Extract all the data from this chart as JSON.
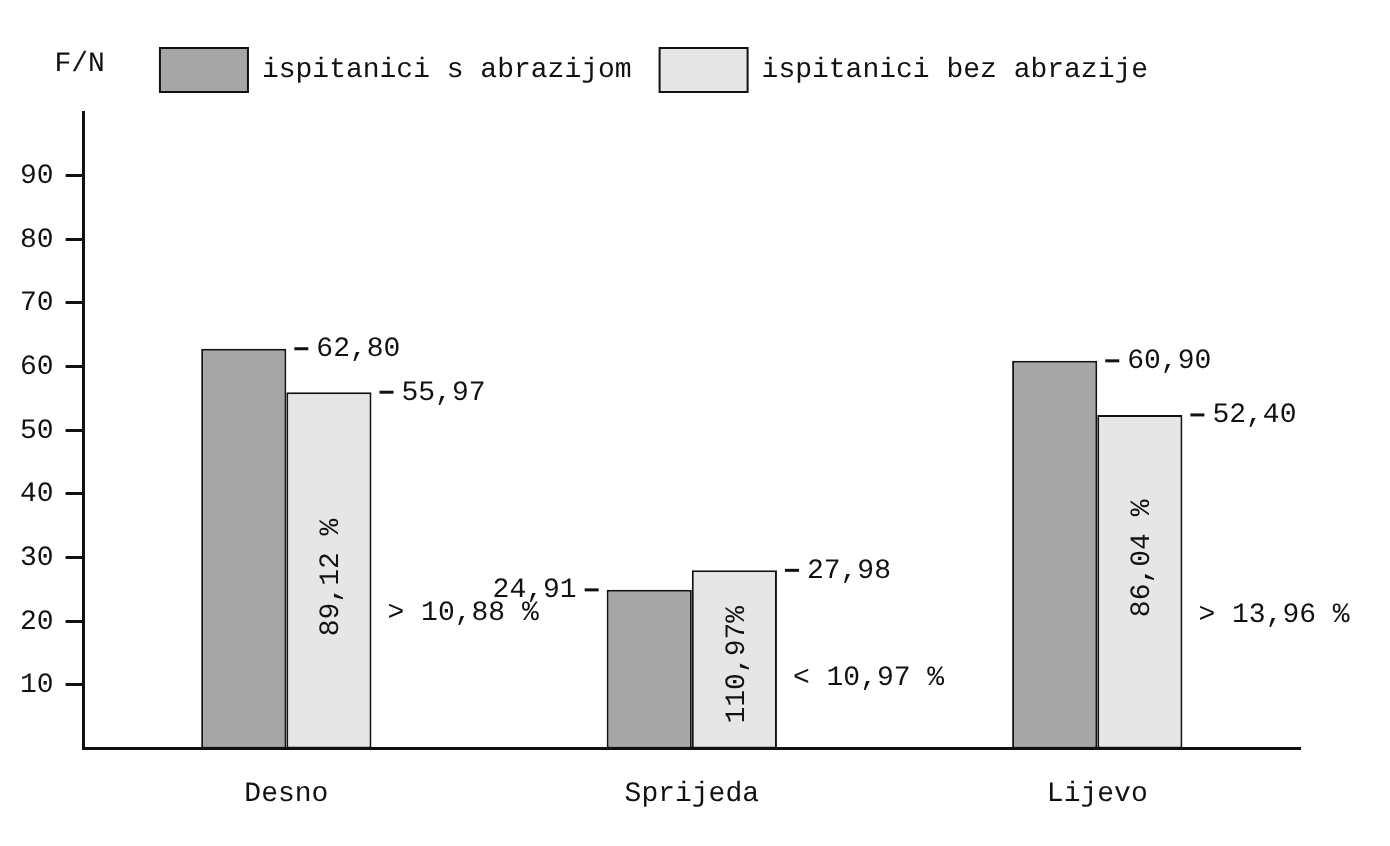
{
  "chart_data": {
    "type": "bar",
    "ylabel": "F/N",
    "categories": [
      "Desno",
      "Sprijeda",
      "Lijevo"
    ],
    "series": [
      {
        "name": "ispitanici s abrazijom",
        "color": "#a6a6a6",
        "values": [
          62.8,
          24.91,
          60.9
        ],
        "value_labels": [
          "62,80",
          "24,91",
          "60,90"
        ]
      },
      {
        "name": "ispitanici bez abrazije",
        "color": "#e6e6e6",
        "values": [
          55.97,
          27.98,
          52.4
        ],
        "value_labels": [
          "55,97",
          "27,98",
          "52,40"
        ]
      }
    ],
    "ylim": [
      0,
      100
    ],
    "yticks": [
      10,
      20,
      30,
      40,
      50,
      60,
      70,
      80,
      90
    ],
    "grid": false,
    "legend": "top",
    "annotations": [
      "89,12 %",
      "> 10,88 %",
      "110,97%",
      "< 10,97 %",
      "86,04 %",
      "> 13,96 %"
    ]
  }
}
